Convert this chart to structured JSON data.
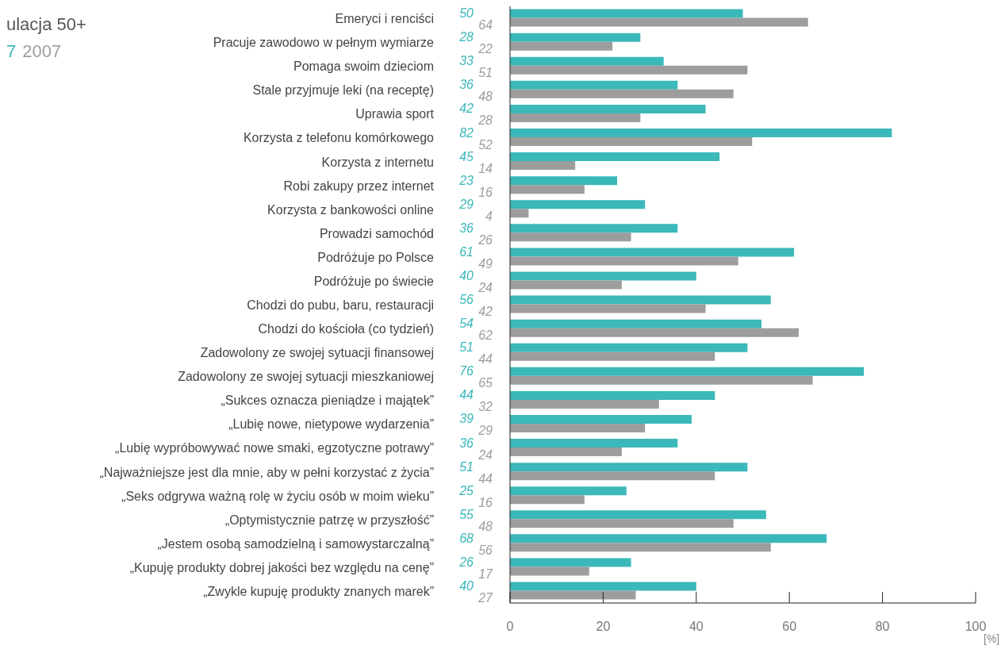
{
  "chart_data": {
    "type": "bar",
    "orientation": "horizontal",
    "title": "ulacja 50+",
    "xlabel": "[%]",
    "categories": [
      "Emeryci i renciści",
      "Pracuje zawodowo w pełnym wymiarze",
      "Pomaga swoim dzieciom",
      "Stale przyjmuje leki (na receptę)",
      "Uprawia sport",
      "Korzysta z telefonu komórkowego",
      "Korzysta z internetu",
      "Robi zakupy przez internet",
      "Korzysta z bankowości online",
      "Prowadzi samochód",
      "Podróżuje po Polsce",
      "Podróżuje po świecie",
      "Chodzi do pubu, baru, restauracji",
      "Chodzi do kościoła (co tydzień)",
      "Zadowolony ze swojej sytuacji finansowej",
      "Zadowolony ze swojej sytuacji mieszkaniowej",
      "„Sukces oznacza pieniądze i majątek”",
      "„Lubię nowe, nietypowe wydarzenia”",
      "„Lubię wypróbowywać nowe smaki, egzotyczne potrawy”",
      "„Najważniejsze jest dla mnie, aby w pełni korzystać z życia”",
      "„Seks odgrywa ważną rolę w życiu osób w moim wieku”",
      "„Optymistycznie patrzę w przyszłość”",
      "„Jestem osobą samodzielną i samowystarczalną”",
      "„Kupuję produkty dobrej jakości bez względu na cenę”",
      "„Zwykle kupuję produkty znanych marek”"
    ],
    "series": [
      {
        "name": "7",
        "color": "#3bb8ba",
        "values": [
          50,
          28,
          33,
          36,
          42,
          82,
          45,
          23,
          29,
          36,
          61,
          40,
          56,
          54,
          51,
          76,
          44,
          39,
          36,
          51,
          25,
          55,
          68,
          26,
          40
        ]
      },
      {
        "name": "2007",
        "color": "#9d9d9d",
        "values": [
          64,
          22,
          51,
          48,
          28,
          52,
          14,
          16,
          4,
          26,
          49,
          24,
          42,
          62,
          44,
          65,
          32,
          29,
          24,
          44,
          16,
          48,
          56,
          17,
          27
        ]
      }
    ],
    "xlim": [
      0,
      100
    ],
    "xticks": [
      0,
      20,
      40,
      60,
      80,
      100
    ],
    "data_labels": true,
    "legend": "top left",
    "grid": false
  }
}
